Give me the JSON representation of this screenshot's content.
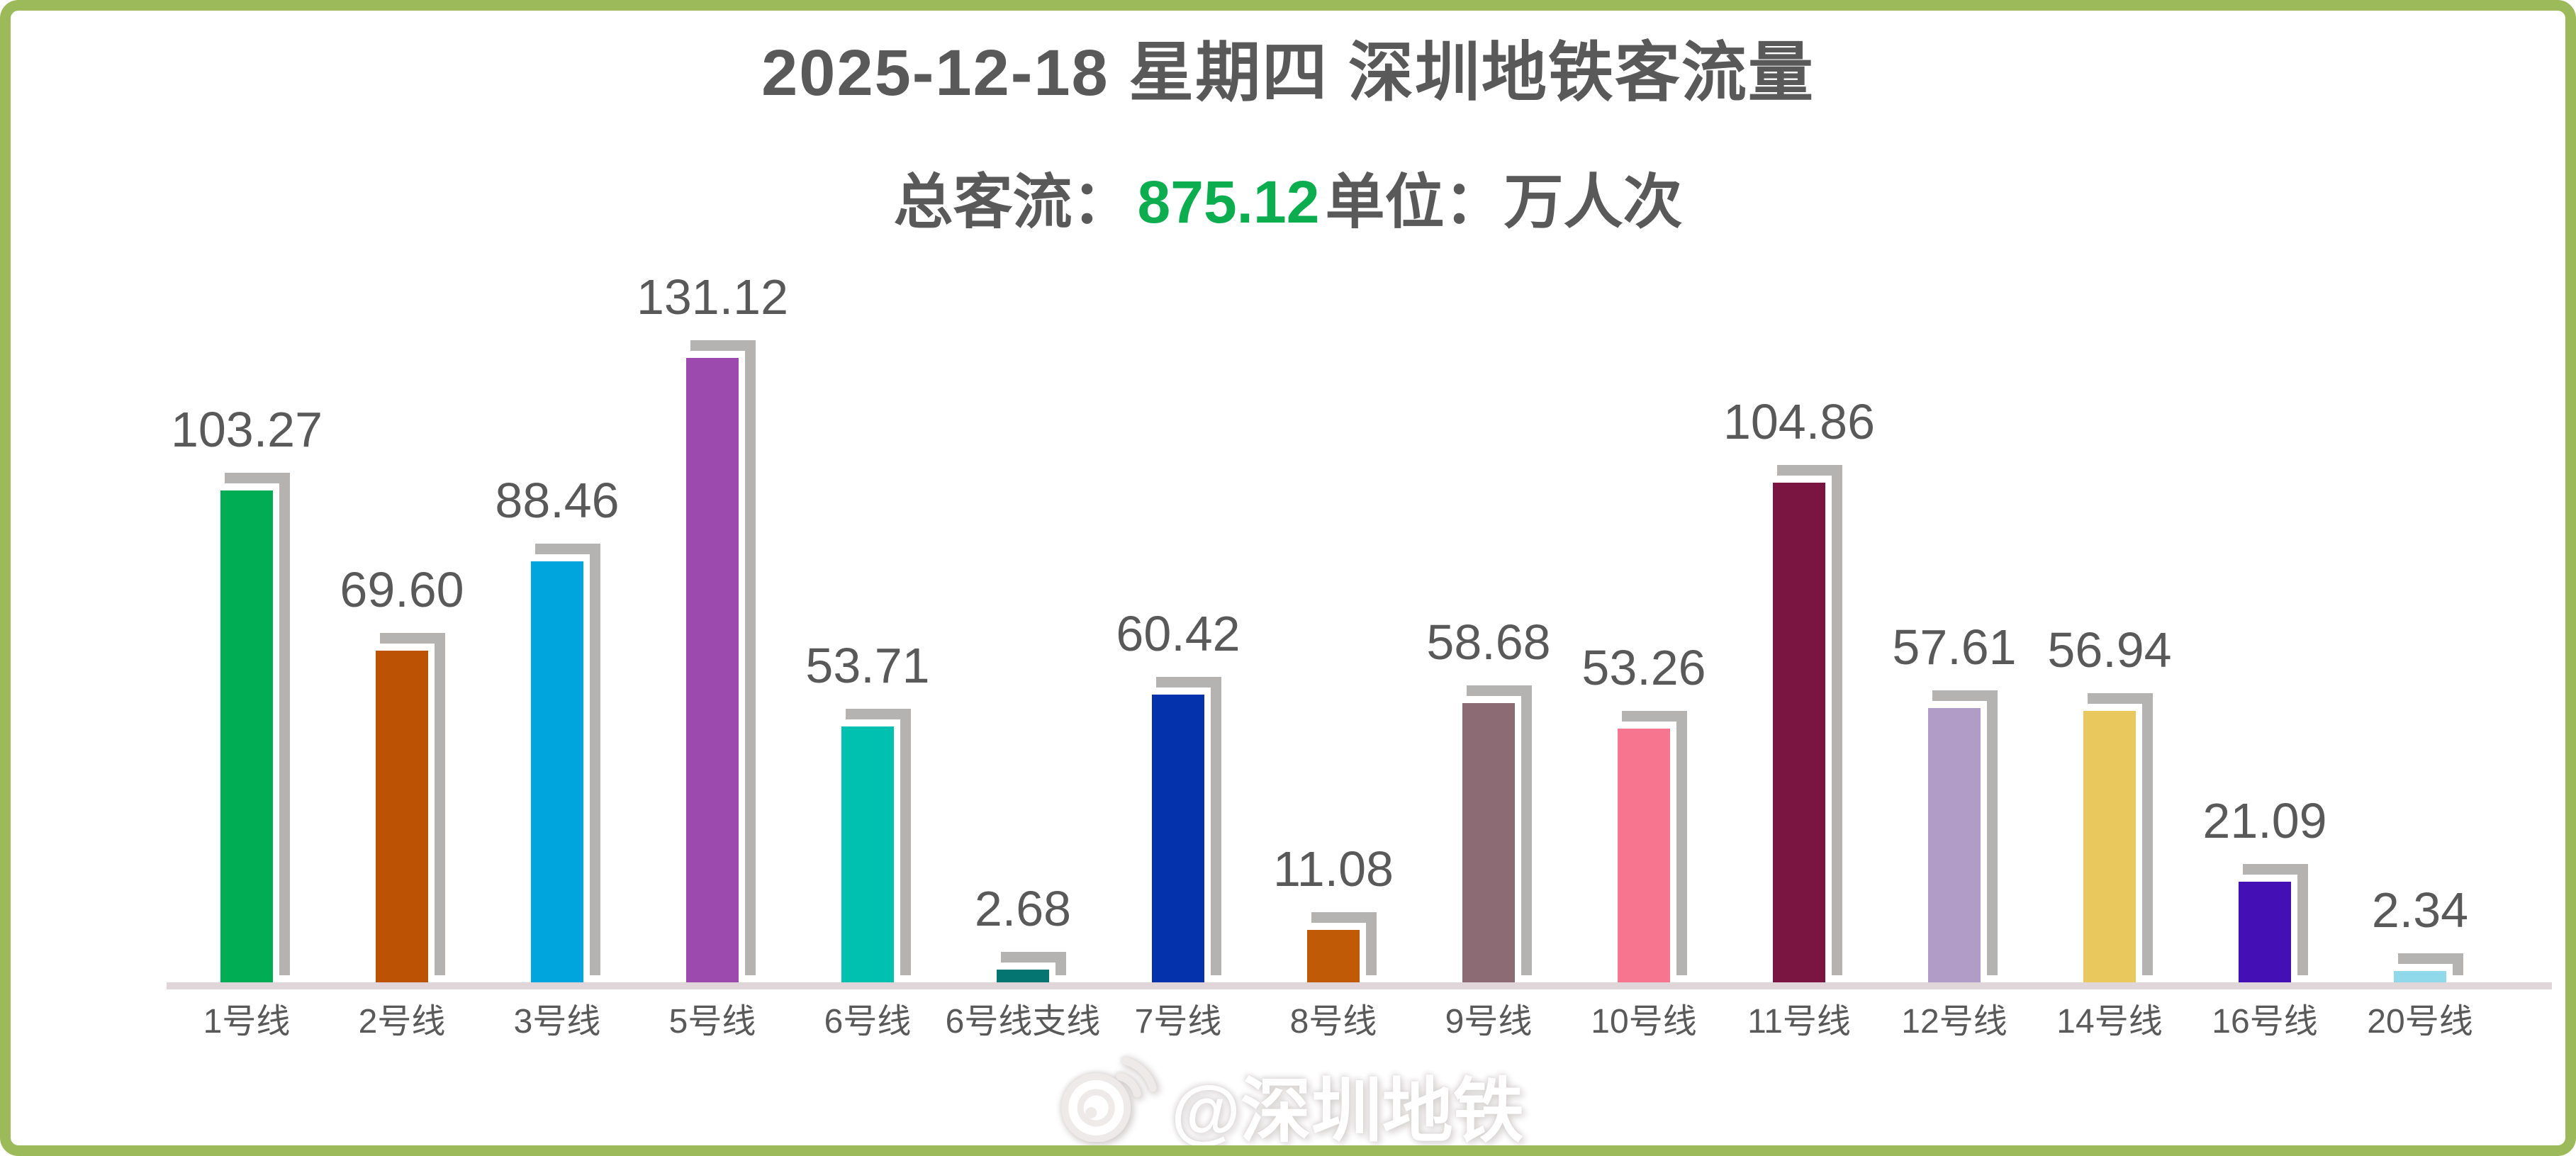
{
  "header": {
    "title": "2025-12-18 星期四 深圳地铁客流量",
    "subtitle": {
      "total_label": "总客流：",
      "total_value": "875.12",
      "unit_text": "单位：万人次"
    }
  },
  "watermark": {
    "icon": "weibo-icon",
    "text": "@深圳地铁"
  },
  "frame": {
    "border_color": "#9cba5a"
  },
  "chart_data": {
    "type": "bar",
    "title": "2025-12-18 星期四 深圳地铁客流量",
    "subtitle": "总客流：875.12 单位：万人次",
    "total": 875.12,
    "unit": "万人次",
    "categories": [
      "1号线",
      "2号线",
      "3号线",
      "5号线",
      "6号线",
      "6号线支线",
      "7号线",
      "8号线",
      "9号线",
      "10号线",
      "11号线",
      "12号线",
      "14号线",
      "16号线",
      "20号线"
    ],
    "values": [
      103.27,
      69.6,
      88.46,
      131.12,
      53.71,
      2.68,
      60.42,
      11.08,
      58.68,
      53.26,
      104.86,
      57.61,
      56.94,
      21.09,
      2.34
    ],
    "colors": [
      "#00ad55",
      "#bc5304",
      "#01a5dd",
      "#9c4aae",
      "#00c0b0",
      "#057572",
      "#0432ac",
      "#c05a07",
      "#8c6b74",
      "#f7758e",
      "#7a1541",
      "#b19cc7",
      "#e9c95e",
      "#4410b5",
      "#8fd9ea"
    ],
    "value_labels_shown": true,
    "label_color": "#595959",
    "bar_shadow_color": "#b5b3b1",
    "axis_line_color": "#e0d5d9",
    "ylim": [
      0,
      140
    ],
    "grid": false,
    "legend": false
  }
}
